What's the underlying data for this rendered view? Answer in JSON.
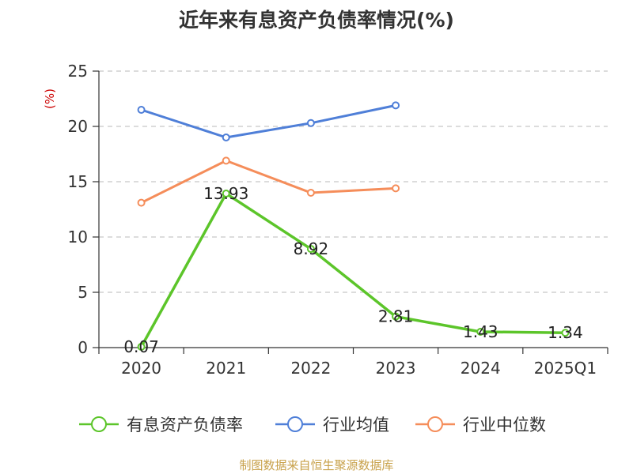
{
  "chart_data": {
    "type": "line",
    "title": "近年来有息资产负债率情况(%)",
    "ylabel": "(%)",
    "categories": [
      "2020",
      "2021",
      "2022",
      "2023",
      "2024",
      "2025Q1"
    ],
    "ylim": [
      0,
      25
    ],
    "yticks": [
      "0",
      "5",
      "10",
      "15",
      "20",
      "25"
    ],
    "grid": true,
    "legend_position": "bottom",
    "series": [
      {
        "name": "有息资产负债率",
        "color": "#5cc52a",
        "values": [
          0.07,
          13.93,
          8.92,
          2.81,
          1.43,
          1.34
        ],
        "labels": [
          "0.07",
          "13.93",
          "8.92",
          "2.81",
          "1.43",
          "1.34"
        ]
      },
      {
        "name": "行业均值",
        "color": "#4f7fd8",
        "values": [
          21.5,
          19.0,
          20.3,
          21.9,
          null,
          null
        ]
      },
      {
        "name": "行业中位数",
        "color": "#f58d5a",
        "values": [
          13.1,
          16.9,
          14.0,
          14.4,
          null,
          null
        ]
      }
    ]
  },
  "source": "制图数据来自恒生聚源数据库"
}
